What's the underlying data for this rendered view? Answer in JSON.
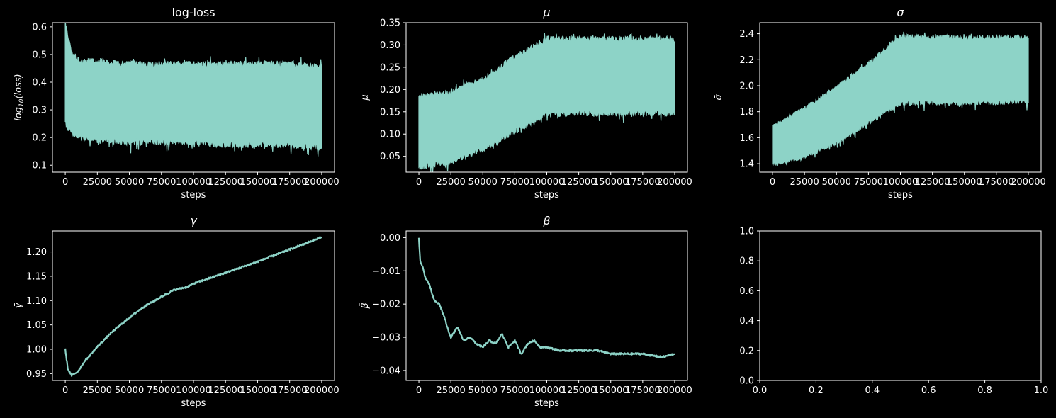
{
  "theme": {
    "background": "#000000",
    "foreground": "#ffffff",
    "series_color": "#8dd3c7"
  },
  "chart_data": [
    {
      "type": "area",
      "title": "log-loss",
      "xlabel": "steps",
      "ylabel_base": "log",
      "ylabel_sub": "10",
      "ylabel_tail": "(loss)",
      "xlim": [
        -10000,
        210000
      ],
      "ylim": [
        0.075,
        0.615
      ],
      "xticks": [
        0,
        25000,
        50000,
        75000,
        100000,
        125000,
        150000,
        175000,
        200000
      ],
      "xtick_labels": [
        "0",
        "25000",
        "50000",
        "75000",
        "100000",
        "125000",
        "150000",
        "175000",
        "200000"
      ],
      "yticks": [
        0.1,
        0.2,
        0.3,
        0.4,
        0.5,
        0.6
      ],
      "ytick_labels": [
        "0.1",
        "0.2",
        "0.3",
        "0.4",
        "0.5",
        "0.6"
      ],
      "series": [
        {
          "x": [
            0,
            5000,
            10000,
            25000,
            50000,
            75000,
            100000,
            125000,
            150000,
            175000,
            200000
          ],
          "upper": [
            0.6,
            0.5,
            0.47,
            0.47,
            0.46,
            0.46,
            0.46,
            0.46,
            0.46,
            0.46,
            0.45
          ],
          "lower": [
            0.26,
            0.22,
            0.21,
            0.2,
            0.19,
            0.19,
            0.19,
            0.18,
            0.18,
            0.18,
            0.17
          ]
        }
      ]
    },
    {
      "type": "area",
      "title": "μ",
      "xlabel": "steps",
      "ylabel_base": "μ̄",
      "xlim": [
        -10000,
        210000
      ],
      "ylim": [
        0.0145,
        0.35
      ],
      "xticks": [
        0,
        25000,
        50000,
        75000,
        100000,
        125000,
        150000,
        175000,
        200000
      ],
      "xtick_labels": [
        "0",
        "25000",
        "50000",
        "75000",
        "100000",
        "125000",
        "150000",
        "175000",
        "200000"
      ],
      "yticks": [
        0.05,
        0.1,
        0.15,
        0.2,
        0.25,
        0.3,
        0.35
      ],
      "ytick_labels": [
        "0.05",
        "0.10",
        "0.15",
        "0.20",
        "0.25",
        "0.30",
        "0.35"
      ],
      "series": [
        {
          "x": [
            0,
            25000,
            50000,
            75000,
            100000,
            125000,
            150000,
            175000,
            200000
          ],
          "upper": [
            0.18,
            0.19,
            0.22,
            0.27,
            0.31,
            0.31,
            0.31,
            0.31,
            0.31
          ],
          "lower": [
            0.03,
            0.04,
            0.07,
            0.11,
            0.15,
            0.15,
            0.15,
            0.15,
            0.15
          ]
        }
      ]
    },
    {
      "type": "area",
      "title": "σ",
      "xlabel": "steps",
      "ylabel_base": "σ̄",
      "xlim": [
        -10000,
        210000
      ],
      "ylim": [
        1.335,
        2.485
      ],
      "xticks": [
        0,
        25000,
        50000,
        75000,
        100000,
        125000,
        150000,
        175000,
        200000
      ],
      "xtick_labels": [
        "0",
        "25000",
        "50000",
        "75000",
        "100000",
        "125000",
        "150000",
        "175000",
        "200000"
      ],
      "yticks": [
        1.4,
        1.6,
        1.8,
        2.0,
        2.2,
        2.4
      ],
      "ytick_labels": [
        "1.4",
        "1.6",
        "1.8",
        "2.0",
        "2.2",
        "2.4"
      ],
      "series": [
        {
          "x": [
            0,
            25000,
            50000,
            75000,
            100000,
            125000,
            150000,
            175000,
            200000
          ],
          "upper": [
            1.68,
            1.82,
            1.98,
            2.16,
            2.37,
            2.36,
            2.36,
            2.36,
            2.36
          ],
          "lower": [
            1.4,
            1.46,
            1.57,
            1.72,
            1.88,
            1.88,
            1.88,
            1.88,
            1.89
          ]
        }
      ]
    },
    {
      "type": "line",
      "title": "γ",
      "xlabel": "steps",
      "ylabel_base": "γ̄",
      "xlim": [
        -10000,
        210000
      ],
      "ylim": [
        0.936,
        1.243
      ],
      "xticks": [
        0,
        25000,
        50000,
        75000,
        100000,
        125000,
        150000,
        175000,
        200000
      ],
      "xtick_labels": [
        "0",
        "25000",
        "50000",
        "75000",
        "100000",
        "125000",
        "150000",
        "175000",
        "200000"
      ],
      "yticks": [
        0.95,
        1.0,
        1.05,
        1.1,
        1.15,
        1.2
      ],
      "ytick_labels": [
        "0.95",
        "1.00",
        "1.05",
        "1.10",
        "1.15",
        "1.20"
      ],
      "series": [
        {
          "x": [
            0,
            2000,
            5000,
            10000,
            15000,
            25000,
            35000,
            50000,
            60000,
            75000,
            85000,
            95000,
            100000,
            125000,
            150000,
            175000,
            200000
          ],
          "y": [
            1.0,
            0.96,
            0.946,
            0.955,
            0.975,
            1.005,
            1.032,
            1.065,
            1.085,
            1.108,
            1.122,
            1.128,
            1.135,
            1.157,
            1.18,
            1.205,
            1.23
          ]
        }
      ]
    },
    {
      "type": "line",
      "title": "β",
      "xlabel": "steps",
      "ylabel_base": "β̄",
      "xlim": [
        -10000,
        210000
      ],
      "ylim": [
        -0.043,
        0.002
      ],
      "xticks": [
        0,
        25000,
        50000,
        75000,
        100000,
        125000,
        150000,
        175000,
        200000
      ],
      "xtick_labels": [
        "0",
        "25000",
        "50000",
        "75000",
        "100000",
        "125000",
        "150000",
        "175000",
        "200000"
      ],
      "yticks": [
        0.0,
        -0.01,
        -0.02,
        -0.03,
        -0.04
      ],
      "ytick_labels": [
        "0.00",
        "−0.01",
        "−0.02",
        "−0.03",
        "−0.04"
      ],
      "series": [
        {
          "x": [
            0,
            1000,
            3000,
            5000,
            8000,
            12000,
            16000,
            20000,
            23000,
            25000,
            30000,
            35000,
            40000,
            45000,
            50000,
            55000,
            60000,
            65000,
            70000,
            75000,
            80000,
            85000,
            90000,
            95000,
            100000,
            110000,
            125000,
            140000,
            150000,
            160000,
            175000,
            190000,
            200000
          ],
          "y": [
            0.0,
            -0.007,
            -0.009,
            -0.012,
            -0.014,
            -0.019,
            -0.02,
            -0.024,
            -0.028,
            -0.03,
            -0.027,
            -0.031,
            -0.03,
            -0.032,
            -0.033,
            -0.031,
            -0.032,
            -0.029,
            -0.033,
            -0.031,
            -0.035,
            -0.032,
            -0.031,
            -0.033,
            -0.033,
            -0.034,
            -0.034,
            -0.034,
            -0.035,
            -0.035,
            -0.035,
            -0.036,
            -0.035
          ]
        }
      ]
    },
    {
      "type": "line",
      "title": "",
      "xlabel": "",
      "ylabel_base": "",
      "xlim": [
        0,
        1
      ],
      "ylim": [
        0,
        1
      ],
      "xticks": [
        0,
        0.2,
        0.4,
        0.6,
        0.8,
        1.0
      ],
      "xtick_labels": [
        "0.0",
        "0.2",
        "0.4",
        "0.6",
        "0.8",
        "1.0"
      ],
      "yticks": [
        0,
        0.2,
        0.4,
        0.6,
        0.8,
        1.0
      ],
      "ytick_labels": [
        "0.0",
        "0.2",
        "0.4",
        "0.6",
        "0.8",
        "1.0"
      ],
      "series": []
    }
  ]
}
